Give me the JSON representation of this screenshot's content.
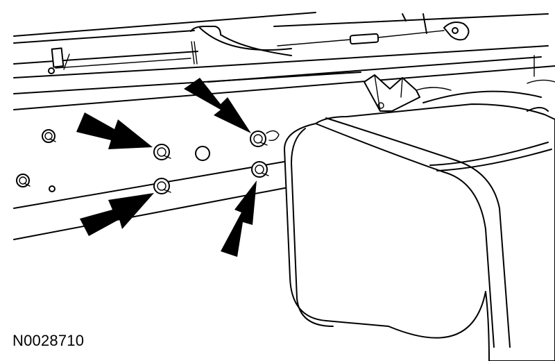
{
  "figure": {
    "id_label": "N0028710",
    "fasteners_highlighted": 4,
    "line_color": "#000000",
    "background": "#ffffff"
  }
}
